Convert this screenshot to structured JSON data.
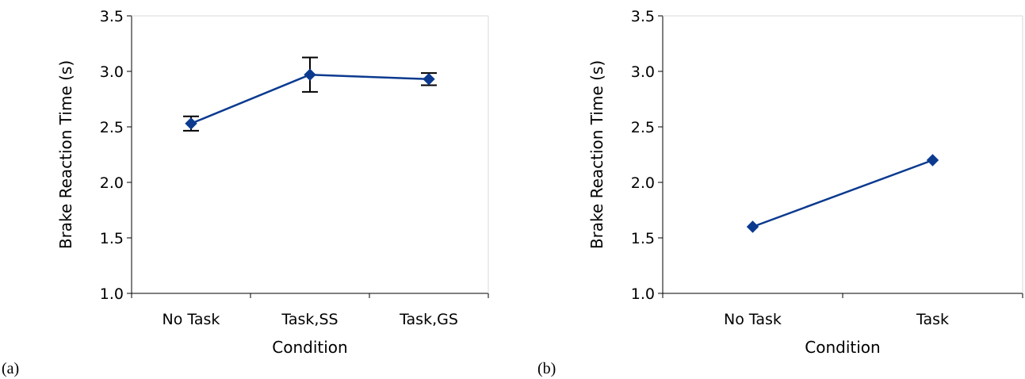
{
  "chart_data": [
    {
      "type": "line",
      "panel_label": "(a)",
      "categories": [
        "No Task",
        "Task,SS",
        "Task,GS"
      ],
      "series": [
        {
          "values": [
            2.53,
            2.97,
            2.93
          ],
          "error": [
            0.065,
            0.155,
            0.055
          ],
          "color": "#0b3a8f"
        }
      ],
      "xlabel": "Condition",
      "ylabel": "Brake Reaction Time (s)",
      "ylim": [
        1.0,
        3.5
      ],
      "yticks": [
        "1.0",
        "1.5",
        "2.0",
        "2.5",
        "3.0",
        "3.5"
      ],
      "grid": false
    },
    {
      "type": "line",
      "panel_label": "(b)",
      "categories": [
        "No Task",
        "Task"
      ],
      "series": [
        {
          "values": [
            1.6,
            2.2
          ],
          "color": "#0b3a8f"
        }
      ],
      "xlabel": "Condition",
      "ylabel": "Brake Reaction Time (s)",
      "ylim": [
        1.0,
        3.5
      ],
      "yticks": [
        "1.0",
        "1.5",
        "2.0",
        "2.5",
        "3.0",
        "3.5"
      ],
      "grid": false
    }
  ]
}
